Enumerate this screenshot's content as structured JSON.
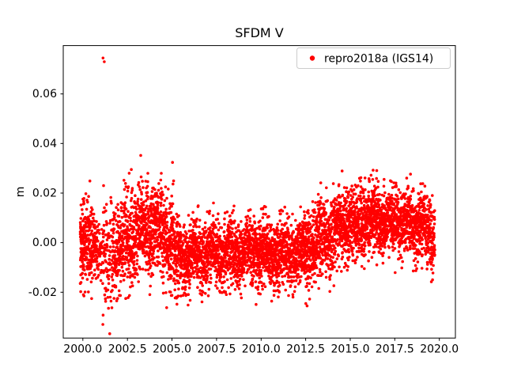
{
  "chart_data": {
    "type": "scatter",
    "title": "SFDM V",
    "xlabel": "",
    "ylabel": "m",
    "grid": false,
    "legend_position": "upper right",
    "xlim": [
      1998.9,
      2020.9
    ],
    "ylim": [
      -0.0385,
      0.0795
    ],
    "xticks": [
      2000.0,
      2002.5,
      2005.0,
      2007.5,
      2010.0,
      2012.5,
      2015.0,
      2017.5,
      2020.0
    ],
    "xtick_labels": [
      "2000.0",
      "2002.5",
      "2005.0",
      "2007.5",
      "2010.0",
      "2012.5",
      "2015.0",
      "2017.5",
      "2020.0"
    ],
    "yticks": [
      -0.02,
      0.0,
      0.02,
      0.04,
      0.06
    ],
    "ytick_labels": [
      "-0.02",
      "0.00",
      "0.02",
      "0.04",
      "0.06"
    ],
    "colors": {
      "marker": "#ff0000",
      "axes": "#000000",
      "legend_border": "#cccccc",
      "background": "#ffffff"
    },
    "series": [
      {
        "name": "repro2018a (IGS14)",
        "color": "#ff0000",
        "marker": "point",
        "seed": 42,
        "seasonal_amplitude": 0.0022,
        "segments": [
          {
            "start": 1999.85,
            "end": 2000.1,
            "mean": 0.0,
            "std": 0.008,
            "density": 420
          },
          {
            "start": 2000.1,
            "end": 2000.5,
            "mean": -0.002,
            "std": 0.0085,
            "density": 300
          },
          {
            "start": 2000.5,
            "end": 2000.85,
            "mean": 0.001,
            "std": 0.007,
            "density": 260
          },
          {
            "start": 2000.85,
            "end": 2001.1,
            "mean": -0.004,
            "std": 0.008,
            "density": 120
          },
          {
            "start": 2001.1,
            "end": 2001.65,
            "mean": -0.006,
            "std": 0.0105,
            "density": 170
          },
          {
            "start": 2001.65,
            "end": 2002.3,
            "mean": -0.003,
            "std": 0.0088,
            "density": 260
          },
          {
            "start": 2002.3,
            "end": 2003.2,
            "mean": 0.002,
            "std": 0.0095,
            "density": 300
          },
          {
            "start": 2003.2,
            "end": 2004.5,
            "mean": 0.006,
            "std": 0.009,
            "density": 320
          },
          {
            "start": 2004.5,
            "end": 2005.1,
            "mean": 0.001,
            "std": 0.0105,
            "density": 300
          },
          {
            "start": 2005.1,
            "end": 2006.0,
            "mean": -0.006,
            "std": 0.007,
            "density": 300
          },
          {
            "start": 2006.0,
            "end": 2009.5,
            "mean": -0.004,
            "std": 0.0065,
            "density": 300
          },
          {
            "start": 2009.5,
            "end": 2012.4,
            "mean": -0.004,
            "std": 0.0068,
            "density": 300
          },
          {
            "start": 2012.4,
            "end": 2013.3,
            "mean": -0.002,
            "std": 0.0075,
            "density": 300
          },
          {
            "start": 2013.3,
            "end": 2014.2,
            "mean": 0.004,
            "std": 0.0075,
            "density": 300
          },
          {
            "start": 2014.2,
            "end": 2015.5,
            "mean": 0.007,
            "std": 0.0075,
            "density": 310
          },
          {
            "start": 2015.5,
            "end": 2017.0,
            "mean": 0.009,
            "std": 0.007,
            "density": 310
          },
          {
            "start": 2017.0,
            "end": 2019.2,
            "mean": 0.008,
            "std": 0.0066,
            "density": 300
          },
          {
            "start": 2019.2,
            "end": 2019.75,
            "mean": 0.003,
            "std": 0.008,
            "density": 280
          }
        ],
        "outliers": [
          [
            2000.03,
            -0.021
          ],
          [
            2000.06,
            -0.0215
          ],
          [
            2001.13,
            0.0745
          ],
          [
            2001.2,
            0.073
          ],
          [
            2001.16,
            0.023
          ],
          [
            2001.12,
            -0.033
          ],
          [
            2001.9,
            -0.0235
          ],
          [
            2001.95,
            -0.0225
          ],
          [
            2002.72,
            0.0295
          ],
          [
            2005.3,
            -0.022
          ],
          [
            2005.35,
            -0.0215
          ],
          [
            2015.6,
            0.0262
          ],
          [
            2016.05,
            0.0258
          ],
          [
            2016.9,
            0.0255
          ],
          [
            2019.55,
            -0.0158
          ],
          [
            2019.62,
            -0.015
          ]
        ]
      }
    ]
  }
}
